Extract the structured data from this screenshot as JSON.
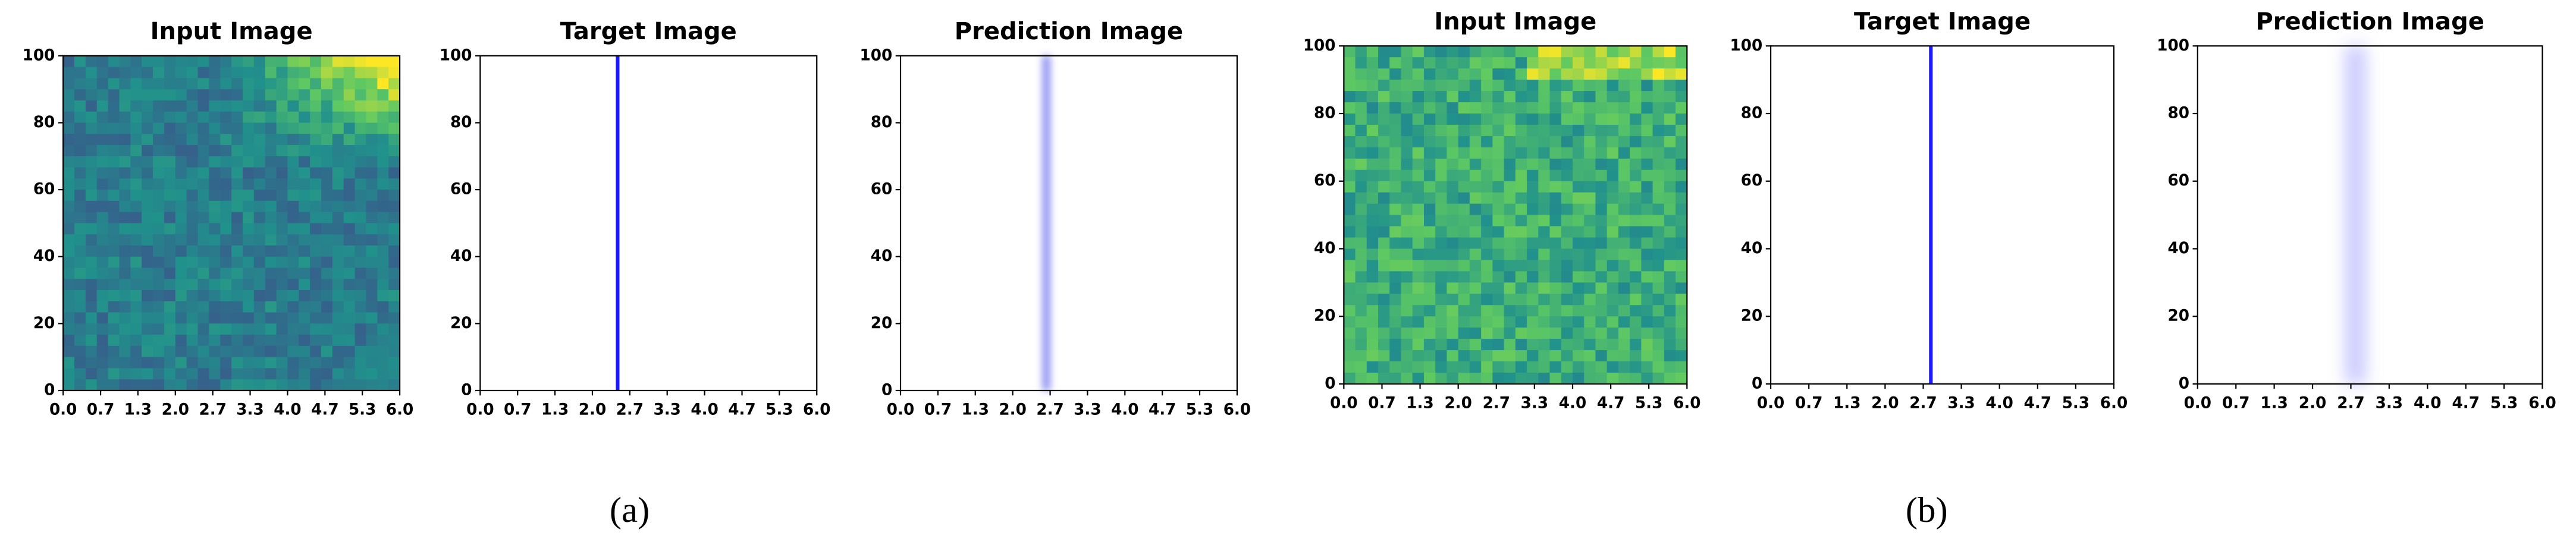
{
  "chart_data": [
    {
      "type": "heatmap",
      "title": "Input Image",
      "xlim": [
        0,
        6
      ],
      "ylim": [
        0,
        100
      ],
      "xticks": [
        {
          "value": 0,
          "label": "0.0"
        },
        {
          "value": 0.667,
          "label": "0.7"
        },
        {
          "value": 1.333,
          "label": "1.3"
        },
        {
          "value": 2,
          "label": "2.0"
        },
        {
          "value": 2.667,
          "label": "2.7"
        },
        {
          "value": 3.333,
          "label": "3.3"
        },
        {
          "value": 4,
          "label": "4.0"
        },
        {
          "value": 4.667,
          "label": "4.7"
        },
        {
          "value": 5.333,
          "label": "5.3"
        },
        {
          "value": 6,
          "label": "6.0"
        }
      ],
      "yticks": [
        0,
        20,
        40,
        60,
        80,
        100
      ]
    },
    {
      "type": "vline",
      "title": "Target Image",
      "xlim": [
        0,
        6
      ],
      "ylim": [
        0,
        100
      ],
      "x": 2.45,
      "color": "#1a1aff",
      "xticks": [
        {
          "value": 0,
          "label": "0.0"
        },
        {
          "value": 0.667,
          "label": "0.7"
        },
        {
          "value": 1.333,
          "label": "1.3"
        },
        {
          "value": 2,
          "label": "2.0"
        },
        {
          "value": 2.667,
          "label": "2.7"
        },
        {
          "value": 3.333,
          "label": "3.3"
        },
        {
          "value": 4,
          "label": "4.0"
        },
        {
          "value": 4.667,
          "label": "4.7"
        },
        {
          "value": 5.333,
          "label": "5.3"
        },
        {
          "value": 6,
          "label": "6.0"
        }
      ],
      "yticks": [
        0,
        20,
        40,
        60,
        80,
        100
      ]
    },
    {
      "type": "band",
      "title": "Prediction Image",
      "xlim": [
        0,
        6
      ],
      "ylim": [
        0,
        100
      ],
      "x": 2.6,
      "color": "#7070f0",
      "xticks": [
        {
          "value": 0,
          "label": "0.0"
        },
        {
          "value": 0.667,
          "label": "0.7"
        },
        {
          "value": 1.333,
          "label": "1.3"
        },
        {
          "value": 2,
          "label": "2.0"
        },
        {
          "value": 2.667,
          "label": "2.7"
        },
        {
          "value": 3.333,
          "label": "3.3"
        },
        {
          "value": 4,
          "label": "4.0"
        },
        {
          "value": 4.667,
          "label": "4.7"
        },
        {
          "value": 5.333,
          "label": "5.3"
        },
        {
          "value": 6,
          "label": "6.0"
        }
      ],
      "yticks": [
        0,
        20,
        40,
        60,
        80,
        100
      ]
    },
    {
      "type": "heatmap",
      "title": "Input Image",
      "xlim": [
        0,
        6
      ],
      "ylim": [
        0,
        100
      ],
      "xticks": [
        {
          "value": 0,
          "label": "0.0"
        },
        {
          "value": 0.667,
          "label": "0.7"
        },
        {
          "value": 1.333,
          "label": "1.3"
        },
        {
          "value": 2,
          "label": "2.0"
        },
        {
          "value": 2.667,
          "label": "2.7"
        },
        {
          "value": 3.333,
          "label": "3.3"
        },
        {
          "value": 4,
          "label": "4.0"
        },
        {
          "value": 4.667,
          "label": "4.7"
        },
        {
          "value": 5.333,
          "label": "5.3"
        },
        {
          "value": 6,
          "label": "6.0"
        }
      ],
      "yticks": [
        0,
        20,
        40,
        60,
        80,
        100
      ]
    },
    {
      "type": "vline",
      "title": "Target Image",
      "xlim": [
        0,
        6
      ],
      "ylim": [
        0,
        100
      ],
      "x": 2.8,
      "color": "#1a1aff",
      "xticks": [
        {
          "value": 0,
          "label": "0.0"
        },
        {
          "value": 0.667,
          "label": "0.7"
        },
        {
          "value": 1.333,
          "label": "1.3"
        },
        {
          "value": 2,
          "label": "2.0"
        },
        {
          "value": 2.667,
          "label": "2.7"
        },
        {
          "value": 3.333,
          "label": "3.3"
        },
        {
          "value": 4,
          "label": "4.0"
        },
        {
          "value": 4.667,
          "label": "4.7"
        },
        {
          "value": 5.333,
          "label": "5.3"
        },
        {
          "value": 6,
          "label": "6.0"
        }
      ],
      "yticks": [
        0,
        20,
        40,
        60,
        80,
        100
      ]
    },
    {
      "type": "band",
      "title": "Prediction Image",
      "xlim": [
        0,
        6
      ],
      "ylim": [
        0,
        100
      ],
      "x": 2.75,
      "color": "#b0b0ff",
      "xticks": [
        {
          "value": 0,
          "label": "0.0"
        },
        {
          "value": 0.667,
          "label": "0.7"
        },
        {
          "value": 1.333,
          "label": "1.3"
        },
        {
          "value": 2,
          "label": "2.0"
        },
        {
          "value": 2.667,
          "label": "2.7"
        },
        {
          "value": 3.333,
          "label": "3.3"
        },
        {
          "value": 4,
          "label": "4.0"
        },
        {
          "value": 4.667,
          "label": "4.7"
        },
        {
          "value": 5.333,
          "label": "5.3"
        },
        {
          "value": 6,
          "label": "6.0"
        }
      ],
      "yticks": [
        0,
        20,
        40,
        60,
        80,
        100
      ]
    }
  ],
  "panel_labels": [
    "(a)",
    "(b)"
  ]
}
